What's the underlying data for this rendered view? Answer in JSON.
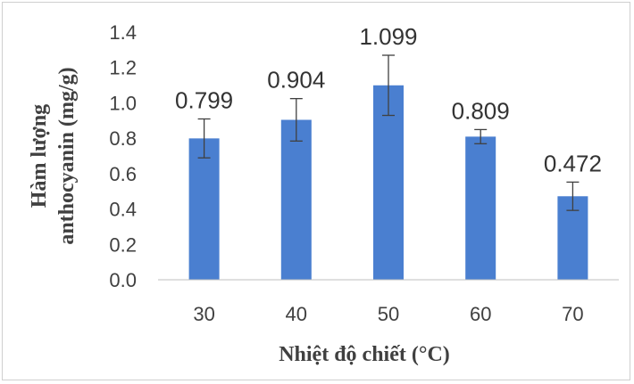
{
  "chart_data": {
    "type": "bar",
    "categories": [
      "30",
      "40",
      "50",
      "60",
      "70"
    ],
    "values": [
      0.799,
      0.904,
      1.099,
      0.809,
      0.472
    ],
    "value_labels": [
      "0.799",
      "0.904",
      "1.099",
      "0.809",
      "0.472"
    ],
    "error": [
      0.11,
      0.12,
      0.17,
      0.04,
      0.08
    ],
    "xlabel": "Nhiệt độ chiết (°C)",
    "ylabel_lines": [
      "Hàm lượng",
      "anthocyanin (mg/g)"
    ],
    "ylim": [
      0,
      1.4
    ],
    "yticks": [
      "0.0",
      "0.2",
      "0.4",
      "0.6",
      "0.8",
      "1.0",
      "1.2",
      "1.4"
    ],
    "grid": false,
    "bar_color": "#4a7fd0",
    "error_color": "#404040"
  }
}
